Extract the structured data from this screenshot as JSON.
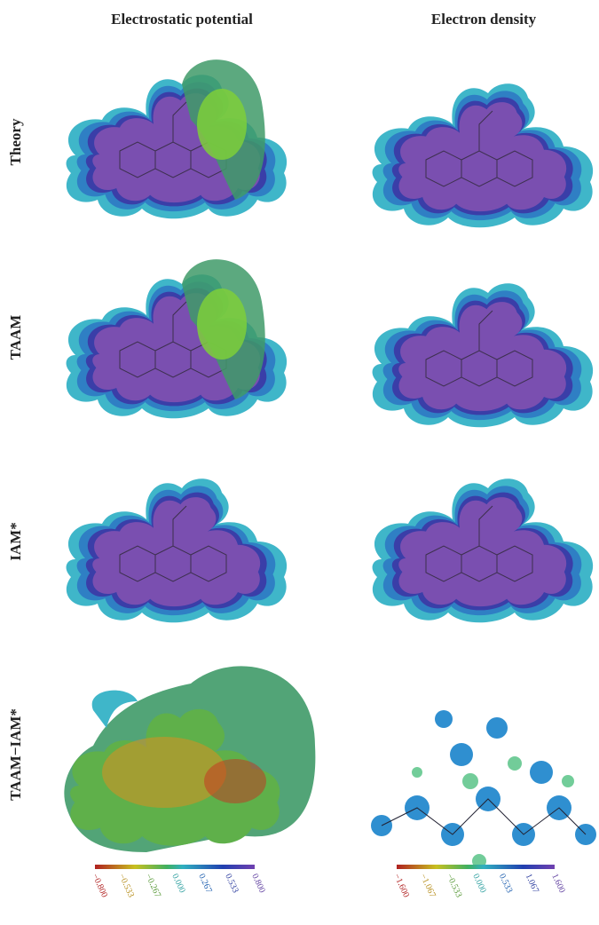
{
  "columns": [
    "Electrostatic potential",
    "Electron density"
  ],
  "rows": [
    "Theory",
    "TAAM",
    "IAM*",
    "TAAM−IAM*"
  ],
  "colorbars": [
    {
      "ticks": [
        "−0.800",
        "−0.533",
        "−0.267",
        "0.000",
        "0.267",
        "0.533",
        "0.800"
      ]
    },
    {
      "ticks": [
        "−1.600",
        "−1.067",
        "−0.533",
        "0.000",
        "0.533",
        "1.067",
        "1.600"
      ]
    }
  ]
}
